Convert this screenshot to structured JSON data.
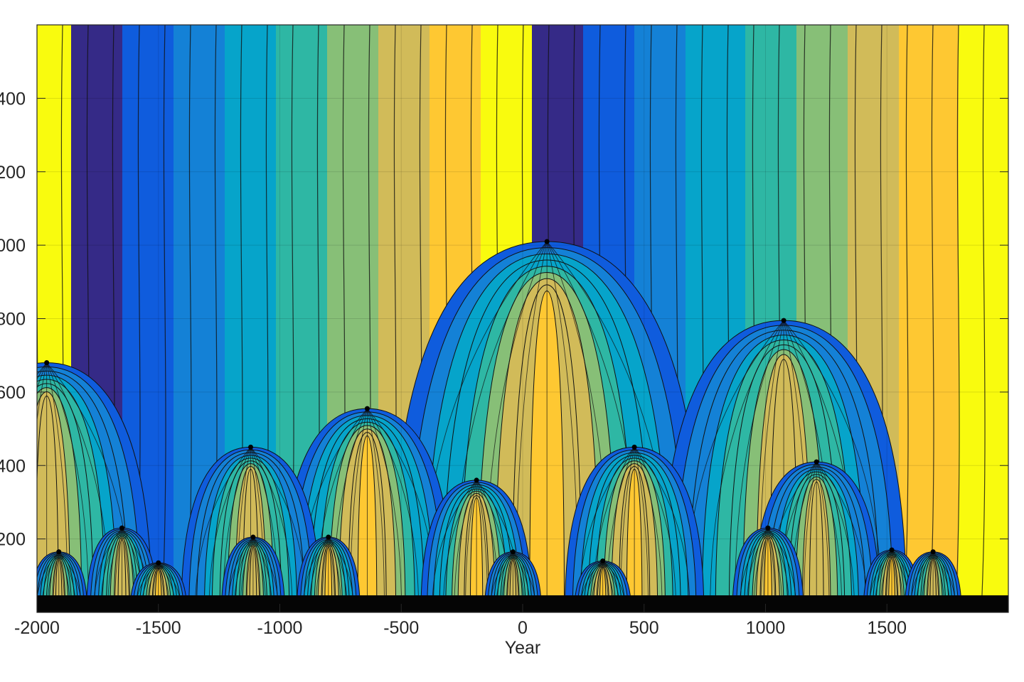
{
  "chart_data": {
    "type": "heatmap",
    "subtype": "filled-contour phase map with contour lines (parula colormap)",
    "title": "",
    "xlabel": "Year",
    "ylabel": "",
    "xlim": [
      -2000,
      2000
    ],
    "ylim": [
      0,
      1600
    ],
    "xticks": [
      -2000,
      -1500,
      -1000,
      -500,
      0,
      500,
      1000,
      1500
    ],
    "xtick_labels": [
      "-2000",
      "-1500",
      "-1000",
      "-500",
      "0",
      "500",
      "1000",
      "1500"
    ],
    "yticks": [
      200,
      400,
      600,
      800,
      1000,
      1200,
      1400
    ],
    "ytick_labels_visible": [
      "200",
      "400",
      "600",
      "800",
      "1000",
      "1200",
      "1400"
    ],
    "ytick_labels_clipped_text": [
      "200",
      "400",
      "500",
      "300",
      "000",
      "200",
      "400"
    ],
    "grid": true,
    "legend": null,
    "colormap": [
      "#352a87",
      "#0f5cdd",
      "#1481d6",
      "#06a4ca",
      "#2eb7a4",
      "#87bf77",
      "#d1bb59",
      "#fec832",
      "#f9fb0e"
    ],
    "phase_singularities": [
      {
        "year": -1960,
        "y": 680
      },
      {
        "year": 100,
        "y": 1010
      },
      {
        "year": 1075,
        "y": 795
      },
      {
        "year": -640,
        "y": 555
      },
      {
        "year": -1120,
        "y": 450
      },
      {
        "year": 460,
        "y": 450
      },
      {
        "year": 1210,
        "y": 410
      },
      {
        "year": -190,
        "y": 360
      },
      {
        "year": -1650,
        "y": 230
      },
      {
        "year": 1010,
        "y": 230
      },
      {
        "year": -1110,
        "y": 205
      },
      {
        "year": -800,
        "y": 205
      },
      {
        "year": -1910,
        "y": 165
      },
      {
        "year": 1520,
        "y": 170
      },
      {
        "year": 1690,
        "y": 165
      },
      {
        "year": -1500,
        "y": 135
      },
      {
        "year": -40,
        "y": 165
      },
      {
        "year": 330,
        "y": 140
      }
    ],
    "notes": "Bottom band (y < ~60) is dense black contour noise."
  }
}
